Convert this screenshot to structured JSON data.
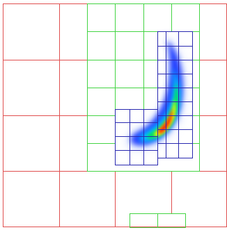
{
  "figure": {
    "description_visible_text": "",
    "background_color": "#ffffff",
    "grid_levels": [
      {
        "level": 0,
        "color": "#e05050"
      },
      {
        "level": 1,
        "color": "#44d444"
      },
      {
        "level": 2,
        "color": "#2a2ab0"
      }
    ],
    "heatmap_colormap": [
      "#ffffff",
      "#3050ff",
      "#00c8ff",
      "#00e060",
      "#ffff00",
      "#ff6000",
      "#ff0000"
    ]
  }
}
